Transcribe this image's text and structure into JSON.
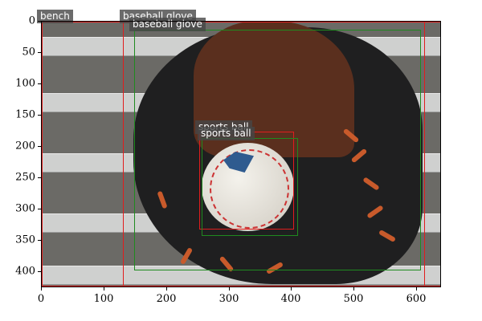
{
  "image": {
    "axis": {
      "x_ticks": [
        "0",
        "100",
        "200",
        "300",
        "400",
        "500",
        "600"
      ],
      "y_ticks": [
        "0",
        "50",
        "100",
        "150",
        "200",
        "250",
        "300",
        "350",
        "400"
      ]
    },
    "detections": [
      {
        "label": "bench",
        "color": "#e11d1d"
      },
      {
        "label": "baseball glove",
        "color": "#e11d1d"
      },
      {
        "label": "baseball glove",
        "color": "#1f8a1f"
      },
      {
        "label": "sports ball",
        "color": "#e11d1d"
      },
      {
        "label": "sports ball",
        "color": "#1f8a1f"
      }
    ]
  }
}
